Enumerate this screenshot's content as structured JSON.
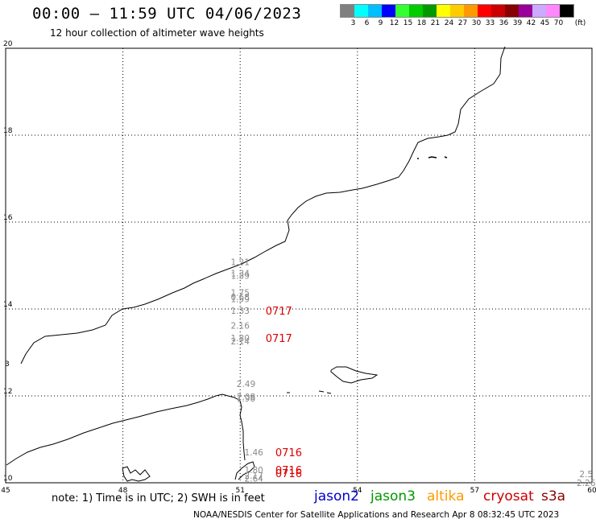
{
  "header": {
    "title": "00:00 – 11:59 UTC 04/06/2023",
    "subtitle": "12 hour collection of altimeter wave heights"
  },
  "legend": {
    "unit": "(ft)",
    "bins": [
      {
        "label": "3",
        "color": "#808080"
      },
      {
        "label": "6",
        "color": "#00ffff"
      },
      {
        "label": "9",
        "color": "#00bfff"
      },
      {
        "label": "12",
        "color": "#0000ff"
      },
      {
        "label": "15",
        "color": "#33ff33"
      },
      {
        "label": "18",
        "color": "#00cc00"
      },
      {
        "label": "21",
        "color": "#009900"
      },
      {
        "label": "24",
        "color": "#ffff00"
      },
      {
        "label": "27",
        "color": "#ffcc00"
      },
      {
        "label": "30",
        "color": "#ff9900"
      },
      {
        "label": "33",
        "color": "#ff0000"
      },
      {
        "label": "36",
        "color": "#cc0000"
      },
      {
        "label": "39",
        "color": "#880000"
      },
      {
        "label": "42",
        "color": "#990099"
      },
      {
        "label": "45",
        "color": "#ccaaff"
      },
      {
        "label": "70",
        "color": "#ff88ff"
      },
      {
        "label": "",
        "color": "#000000"
      }
    ]
  },
  "axes": {
    "lon_ticks": [
      "45",
      "48",
      "51",
      "54",
      "57",
      "60"
    ],
    "lat_ticks": [
      "10",
      "12",
      "14",
      "16",
      "18",
      "20"
    ],
    "lat_edge_label": "3"
  },
  "observations": [
    {
      "lon": 51.0,
      "lat": 15.08,
      "value": "1.21"
    },
    {
      "lon": 51.0,
      "lat": 14.82,
      "value": "1.34"
    },
    {
      "lon": 51.0,
      "lat": 14.77,
      "value": "1.39"
    },
    {
      "lon": 51.0,
      "lat": 14.38,
      "value": "1.75"
    },
    {
      "lon": 51.0,
      "lat": 14.28,
      "value": "0.68"
    },
    {
      "lon": 51.0,
      "lat": 14.23,
      "value": "1.59"
    },
    {
      "lon": 51.0,
      "lat": 13.96,
      "value": "1.33"
    },
    {
      "lon": 51.0,
      "lat": 13.62,
      "value": "2.16"
    },
    {
      "lon": 51.0,
      "lat": 13.33,
      "value": "1.80"
    },
    {
      "lon": 51.0,
      "lat": 13.26,
      "value": "2.14"
    },
    {
      "lon": 51.15,
      "lat": 12.28,
      "value": "2.49"
    },
    {
      "lon": 51.15,
      "lat": 11.98,
      "value": "2.08"
    },
    {
      "lon": 51.15,
      "lat": 11.94,
      "value": "1.98"
    },
    {
      "lon": 51.35,
      "lat": 10.7,
      "value": "1.46"
    },
    {
      "lon": 51.35,
      "lat": 10.3,
      "value": "1.80"
    },
    {
      "lon": 51.35,
      "lat": 10.17,
      "value": "2.17"
    },
    {
      "lon": 51.35,
      "lat": 10.1,
      "value": "2.64"
    },
    {
      "lon": 59.85,
      "lat": 10.2,
      "value": "2.5"
    },
    {
      "lon": 59.85,
      "lat": 10.0,
      "value": "2.26"
    }
  ],
  "time_labels": [
    {
      "lon": 51.65,
      "lat": 13.96,
      "text": "0717"
    },
    {
      "lon": 51.65,
      "lat": 13.33,
      "text": "0717"
    },
    {
      "lon": 51.9,
      "lat": 10.7,
      "text": "0716"
    },
    {
      "lon": 51.9,
      "lat": 10.3,
      "text": "0716"
    },
    {
      "lon": 51.9,
      "lat": 10.22,
      "text": "0716"
    }
  ],
  "footer": {
    "note": "note:  1) Time is in UTC;  2) SWH is in feet",
    "satellites": [
      {
        "name": "jason2",
        "color": "#0000cc"
      },
      {
        "name": "jason3",
        "color": "#009900"
      },
      {
        "name": "altika",
        "color": "#ff9900"
      },
      {
        "name": "cryosat",
        "color": "#cc0000"
      },
      {
        "name": "s3a",
        "color": "#880000"
      }
    ],
    "credit": "NOAA/NESDIS Center for Satellite Applications and Research   Apr  8 08:32:45 UTC 2023"
  }
}
